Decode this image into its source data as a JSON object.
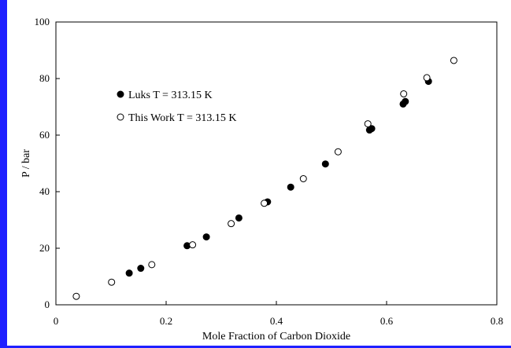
{
  "chart_data": {
    "type": "scatter",
    "title": "",
    "xlabel": "Mole Fraction of Carbon Dioxide",
    "ylabel": "P / bar",
    "xlim": [
      0,
      0.8
    ],
    "ylim": [
      0,
      100
    ],
    "xticks": [
      "0",
      "0.2",
      "0.4",
      "0.6",
      "0.8"
    ],
    "yticks": [
      "0",
      "20",
      "40",
      "60",
      "80",
      "100"
    ],
    "grid": false,
    "legend_position": "top-left",
    "series": [
      {
        "name": "Luks T = 313.15 K",
        "marker": "filled-circle",
        "color": "#000000",
        "x": [
          0.133,
          0.154,
          0.238,
          0.273,
          0.332,
          0.384,
          0.426,
          0.489,
          0.569,
          0.573,
          0.63,
          0.634,
          0.676
        ],
        "y": [
          11.2,
          12.9,
          20.9,
          24.0,
          30.7,
          36.4,
          41.6,
          49.8,
          61.8,
          62.3,
          71.0,
          71.9,
          79.0
        ]
      },
      {
        "name": "This Work T = 313.15 K",
        "marker": "open-circle",
        "color": "#000000",
        "x": [
          0.037,
          0.101,
          0.174,
          0.248,
          0.318,
          0.378,
          0.449,
          0.512,
          0.566,
          0.631,
          0.673,
          0.722
        ],
        "y": [
          3.0,
          8.0,
          14.2,
          21.2,
          28.7,
          35.9,
          44.6,
          54.1,
          64.0,
          74.6,
          80.3,
          86.4
        ]
      }
    ]
  }
}
